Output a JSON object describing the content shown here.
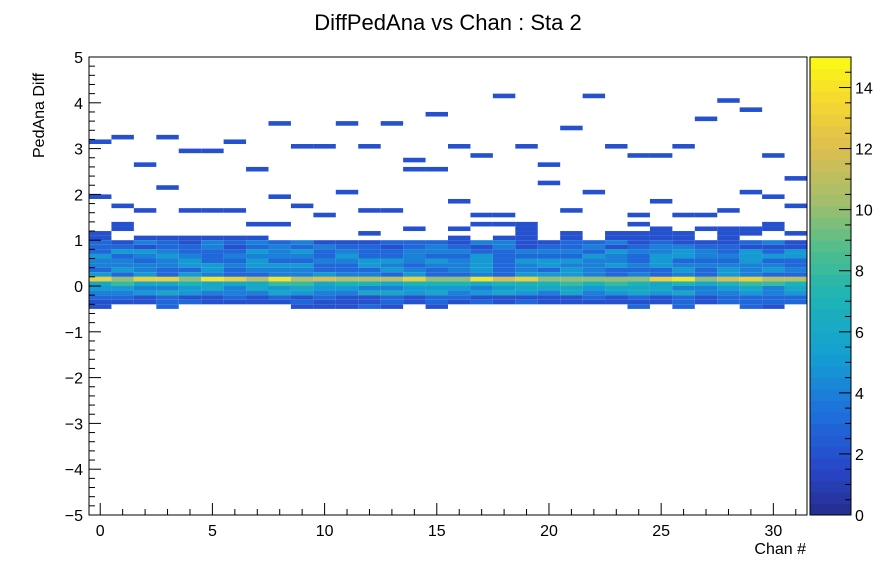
{
  "chart_data": {
    "type": "heatmap",
    "title": "DiffPedAna vs Chan : Sta 2",
    "xlabel": "Chan #",
    "ylabel": "PedAna Diff",
    "xlim": [
      -0.5,
      31.5
    ],
    "ylim": [
      -5,
      5
    ],
    "x_ticks": [
      "0",
      "5",
      "10",
      "15",
      "20",
      "25",
      "30"
    ],
    "y_ticks": [
      "5",
      "4",
      "3",
      "2",
      "1",
      "0",
      "−1",
      "−2",
      "−3",
      "−4",
      "−5"
    ],
    "colorbar": {
      "min": 0,
      "max": 15,
      "ticks": [
        "14",
        "12",
        "10",
        "8",
        "6",
        "4",
        "2",
        "0"
      ]
    },
    "cells": [
      [
        0,
        3.15,
        2
      ],
      [
        1,
        3.25,
        2
      ],
      [
        3,
        3.25,
        2
      ],
      [
        4,
        2.95,
        2
      ],
      [
        5,
        2.95,
        2
      ],
      [
        6,
        3.15,
        2
      ],
      [
        8,
        3.55,
        2
      ],
      [
        9,
        3.05,
        2
      ],
      [
        10,
        3.05,
        2
      ],
      [
        11,
        3.55,
        2
      ],
      [
        12,
        3.05,
        2
      ],
      [
        13,
        3.55,
        2
      ],
      [
        14,
        2.75,
        2
      ],
      [
        15,
        3.75,
        2
      ],
      [
        16,
        3.05,
        2
      ],
      [
        17,
        2.85,
        2
      ],
      [
        18,
        4.15,
        2
      ],
      [
        19,
        3.05,
        2
      ],
      [
        20,
        2.65,
        2
      ],
      [
        21,
        3.45,
        2
      ],
      [
        22,
        4.15,
        2
      ],
      [
        23,
        3.05,
        2
      ],
      [
        24,
        2.85,
        2
      ],
      [
        25,
        2.85,
        2
      ],
      [
        26,
        3.05,
        2
      ],
      [
        27,
        3.65,
        2
      ],
      [
        28,
        4.05,
        2
      ],
      [
        29,
        3.85,
        2
      ],
      [
        30,
        2.85,
        2
      ],
      [
        2,
        2.65,
        2
      ],
      [
        7,
        2.55,
        2
      ],
      [
        14,
        2.55,
        2
      ],
      [
        15,
        2.55,
        2
      ],
      [
        20,
        2.25,
        2
      ],
      [
        31,
        2.35,
        2
      ],
      [
        0,
        1.95,
        2
      ],
      [
        3,
        2.15,
        2
      ],
      [
        8,
        1.95,
        2
      ],
      [
        11,
        2.05,
        2
      ],
      [
        16,
        1.85,
        2
      ],
      [
        22,
        2.05,
        2
      ],
      [
        25,
        1.85,
        2
      ],
      [
        29,
        2.05,
        2
      ],
      [
        30,
        1.95,
        2
      ],
      [
        1,
        1.75,
        2
      ],
      [
        2,
        1.65,
        2
      ],
      [
        4,
        1.65,
        2
      ],
      [
        5,
        1.65,
        2
      ],
      [
        6,
        1.65,
        2
      ],
      [
        9,
        1.75,
        2
      ],
      [
        10,
        1.55,
        2
      ],
      [
        12,
        1.65,
        2
      ],
      [
        13,
        1.65,
        2
      ],
      [
        17,
        1.55,
        2
      ],
      [
        18,
        1.55,
        2
      ],
      [
        21,
        1.65,
        2
      ],
      [
        24,
        1.55,
        2
      ],
      [
        26,
        1.55,
        2
      ],
      [
        27,
        1.55,
        2
      ],
      [
        28,
        1.65,
        2
      ],
      [
        31,
        1.75,
        2
      ]
    ],
    "dense_band": {
      "sparse_y": [
        1.35,
        1.25,
        1.15,
        1.05
      ],
      "mid_y": [
        0.95,
        0.85,
        0.75,
        0.65,
        0.55,
        0.45,
        0.35
      ],
      "core_y": [
        0.25,
        0.15,
        0.05,
        -0.05,
        -0.15
      ],
      "low_y": [
        -0.25,
        -0.35,
        -0.45
      ]
    }
  }
}
